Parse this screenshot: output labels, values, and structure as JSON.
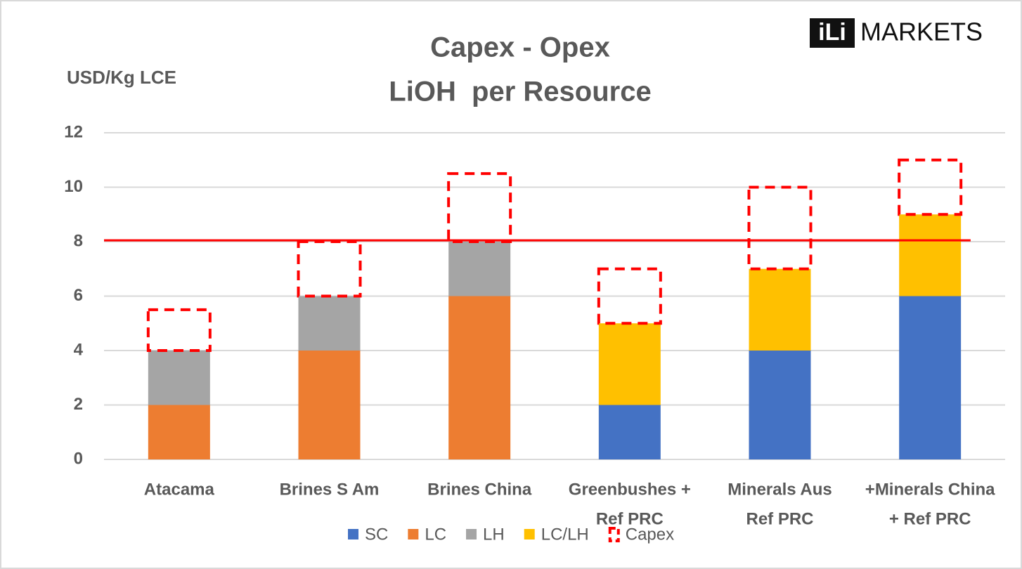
{
  "chart_data": {
    "type": "stacked_bar",
    "title": [
      "Capex - Opex",
      "LiOH  per Resource"
    ],
    "y_axis_label": "USD/Kg LCE",
    "logo_mark": "iLi",
    "logo_text": "MARKETS",
    "categories": [
      [
        "Atacama"
      ],
      [
        "Brines S Am"
      ],
      [
        "Brines China"
      ],
      [
        "Greenbushes +",
        "Ref PRC"
      ],
      [
        "Minerals Aus",
        "Ref PRC"
      ],
      [
        "+Minerals China",
        "+ Ref PRC"
      ]
    ],
    "series": [
      {
        "name": "SC",
        "color": "#4472c4",
        "values": [
          null,
          null,
          null,
          2,
          4,
          6
        ]
      },
      {
        "name": "LC",
        "color": "#ed7d31",
        "values": [
          2,
          4,
          6,
          null,
          null,
          null
        ]
      },
      {
        "name": "LH",
        "color": "#a5a5a5",
        "values": [
          2,
          2,
          2,
          null,
          null,
          null
        ]
      },
      {
        "name": "LC/LH",
        "color": "#ffc000",
        "values": [
          null,
          null,
          null,
          3,
          3,
          3
        ]
      },
      {
        "name": "Capex",
        "color": "#ff0000",
        "dashed": true,
        "values": [
          1.5,
          2,
          2.5,
          2,
          3,
          2
        ]
      }
    ],
    "reference_line": {
      "value": 8.05,
      "color": "#ff0000"
    },
    "ylim": [
      0,
      12
    ],
    "yticks": [
      0,
      2,
      4,
      6,
      8,
      10,
      12
    ],
    "grid": true
  }
}
